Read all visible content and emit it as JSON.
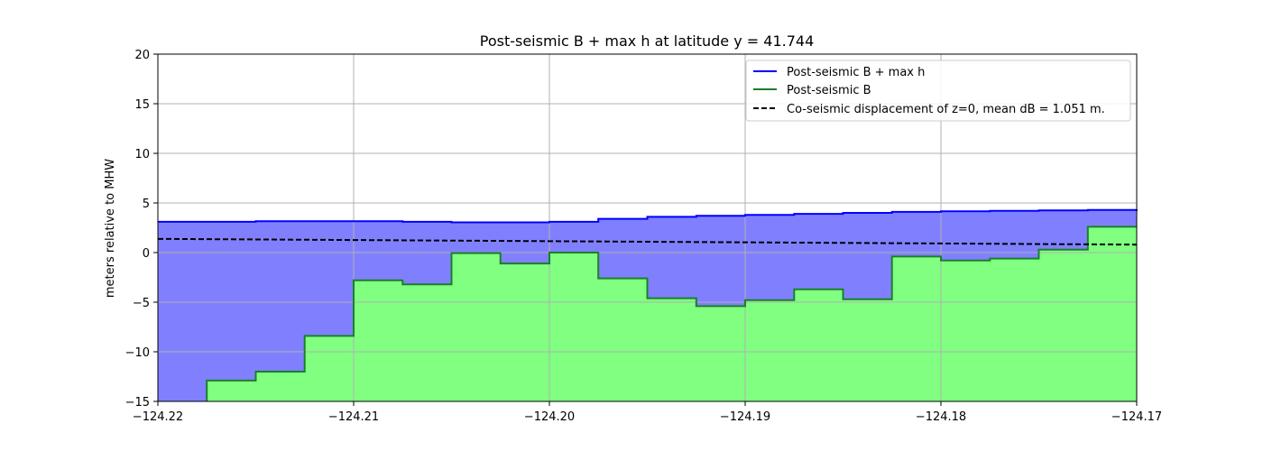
{
  "chart_data": {
    "type": "area",
    "title": "Post-seismic B + max h at latitude y = 41.744",
    "xlabel": "",
    "ylabel": "meters relative to MHW",
    "xlim": [
      -124.22,
      -124.17
    ],
    "ylim": [
      -15,
      20
    ],
    "x_ticks": [
      -124.22,
      -124.21,
      -124.2,
      -124.19,
      -124.18,
      -124.17
    ],
    "x_tick_labels": [
      "−124.22",
      "−124.21",
      "−124.20",
      "−124.19",
      "−124.18",
      "−124.17"
    ],
    "y_ticks": [
      -15,
      -10,
      -5,
      0,
      5,
      10,
      15,
      20
    ],
    "y_tick_labels": [
      "−15",
      "−10",
      "−5",
      "0",
      "5",
      "10",
      "15",
      "20"
    ],
    "grid": true,
    "legend_position": "top-right",
    "colors": {
      "blue_line": "#0000ff",
      "blue_fill": "#8080ff",
      "green_line": "#1b7f2a",
      "green_fill": "#80ff80",
      "dashed": "#000000",
      "grid": "#b0b0b0"
    },
    "series": [
      {
        "name": "Post-seismic B + max h",
        "style": "solid",
        "color": "blue",
        "x": [
          -124.22,
          -124.2175,
          -124.215,
          -124.2125,
          -124.21,
          -124.2075,
          -124.205,
          -124.2025,
          -124.2,
          -124.1975,
          -124.195,
          -124.1925,
          -124.19,
          -124.1875,
          -124.185,
          -124.1825,
          -124.18,
          -124.1775,
          -124.175,
          -124.1725,
          -124.17
        ],
        "y": [
          3.1,
          3.1,
          3.15,
          3.15,
          3.15,
          3.1,
          3.05,
          3.05,
          3.1,
          3.4,
          3.6,
          3.7,
          3.8,
          3.9,
          4.0,
          4.1,
          4.15,
          4.2,
          4.25,
          4.3,
          4.35
        ]
      },
      {
        "name": "Post-seismic B",
        "style": "solid",
        "color": "green",
        "x": [
          -124.2175,
          -124.215,
          -124.2125,
          -124.21,
          -124.2075,
          -124.205,
          -124.2025,
          -124.2,
          -124.1975,
          -124.195,
          -124.1925,
          -124.19,
          -124.1875,
          -124.185,
          -124.1825,
          -124.18,
          -124.1775,
          -124.175,
          -124.1725,
          -124.17
        ],
        "y": [
          -12.9,
          -12.0,
          -8.4,
          -2.8,
          -3.2,
          -0.05,
          -1.1,
          0.0,
          -2.6,
          -4.6,
          -5.4,
          -4.8,
          -3.7,
          -4.7,
          -0.4,
          -0.8,
          -0.6,
          0.3,
          2.6,
          2.6
        ]
      },
      {
        "name": "Co-seismic displacement of z=0, mean dB = 1.051 m.",
        "style": "dashed",
        "color": "black",
        "x": [
          -124.22,
          -124.17
        ],
        "y": [
          1.38,
          0.8
        ]
      }
    ]
  }
}
